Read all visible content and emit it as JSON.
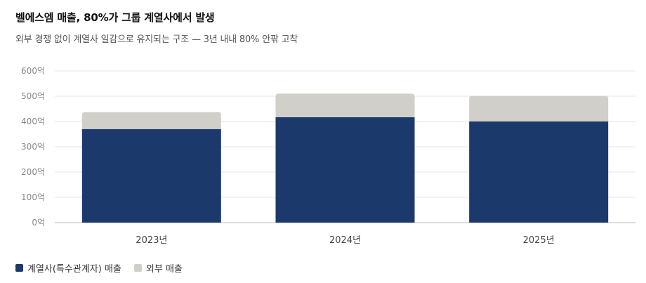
{
  "header": {
    "title": "벨에스엠 매출, 80%가 그룹 계열사에서 발생",
    "subtitle": "외부 경쟁 없이 계열사 일감으로 유지되는 구조 — 3년 내내 80% 안팎 고착"
  },
  "colors": {
    "affiliate": "#1b3a6b",
    "external": "#d0cfca",
    "grid": "#e6e6e6",
    "axis": "#bbbbbb"
  },
  "chart_data": {
    "type": "bar",
    "stacked": true,
    "categories": [
      "2023년",
      "2024년",
      "2025년"
    ],
    "series": [
      {
        "name": "계열사(특수관계자) 매출",
        "values": [
          370,
          417,
          400
        ]
      },
      {
        "name": "외부 매출",
        "values": [
          67,
          93,
          101
        ]
      }
    ],
    "ylim": [
      0,
      600
    ],
    "yticks": [
      0,
      100,
      200,
      300,
      400,
      500,
      600
    ],
    "ytick_labels": [
      "0억",
      "100억",
      "200억",
      "300억",
      "400억",
      "500억",
      "600억"
    ],
    "grid": true,
    "legend_position": "bottom-left"
  },
  "legend": {
    "items": [
      "계열사(특수관계자) 매출",
      "외부 매출"
    ]
  }
}
